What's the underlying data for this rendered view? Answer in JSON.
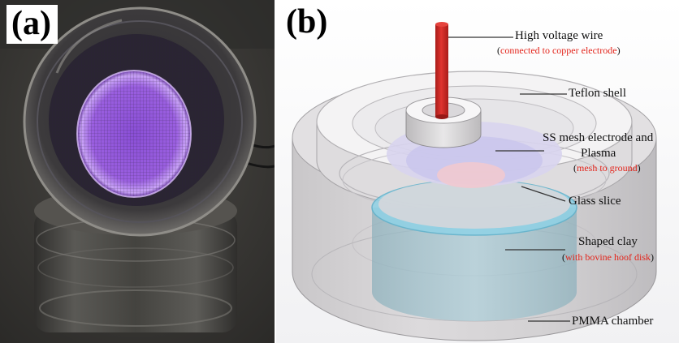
{
  "panel_a": {
    "label": "(a)"
  },
  "panel_b": {
    "label": "(b)",
    "annotations": {
      "hv_wire": {
        "title": "High voltage wire",
        "note": "connected to copper electrode"
      },
      "teflon": {
        "title": "Teflon shell"
      },
      "mesh": {
        "title_line1": "SS mesh electrode and",
        "title_line2": "Plasma",
        "note": "mesh to ground"
      },
      "glass": {
        "title": "Glass slice"
      },
      "clay": {
        "title": "Shaped clay",
        "note_prefix": "(",
        "note": "with bovine hoof disk",
        "note_suffix": ")"
      },
      "pmma": {
        "title": "PMMA chamber"
      }
    }
  },
  "colors": {
    "wire": "#d32a26",
    "plasma": "#a46ce6",
    "clay": "#9fc4cf",
    "annotation_note": "#e3241b"
  }
}
